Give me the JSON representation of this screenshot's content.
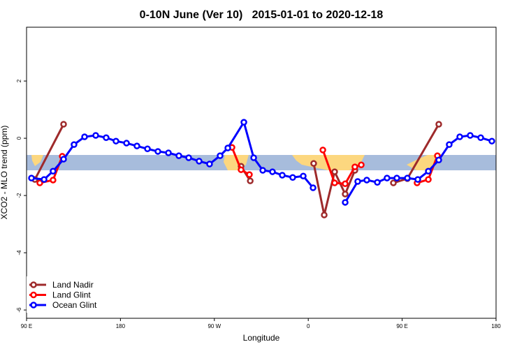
{
  "chart_data": {
    "type": "line",
    "title": "0-10N June (Ver 10)   2015-01-01 to 2020-12-18",
    "x_label": "Longitude",
    "y_label": "XCO2 - MLO trend (ppm)",
    "xlim": [
      90,
      540
    ],
    "ylim": [
      -6.29,
      3.88
    ],
    "xticks": [
      {
        "value": 90,
        "label": "90 E"
      },
      {
        "value": 180,
        "label": "180"
      },
      {
        "value": 270,
        "label": "90 W"
      },
      {
        "value": 360,
        "label": "0"
      },
      {
        "value": 450,
        "label": "90 E"
      },
      {
        "value": 540,
        "label": "180"
      }
    ],
    "yticks": [
      -6,
      -4,
      -2,
      0,
      2
    ],
    "legend": "bottom-left",
    "series": [
      {
        "name": "Land Nadir",
        "color": "#9e2a2b",
        "x": [
          98,
          125.5,
          210,
          295.6,
          304.4,
          335,
          365.2,
          375.3,
          385.3,
          395.4,
          404.7,
          420,
          441.6,
          455,
          485.1
        ],
        "values": [
          -1.44,
          0.49,
          null,
          -0.98,
          -1.49,
          null,
          -0.88,
          -2.68,
          -1.17,
          -1.95,
          -1.12,
          null,
          -1.56,
          -1.41,
          0.49
        ]
      },
      {
        "name": "Land Glint",
        "color": "#ff0000",
        "x": [
          102.7,
          115.4,
          124.2,
          210,
          286.9,
          295.6,
          303.6,
          335,
          374,
          385.3,
          395.4,
          404.7,
          410.8,
          440,
          464.3,
          475.1,
          483.8
        ],
        "values": [
          -1.56,
          -1.46,
          -0.63,
          null,
          -0.32,
          -1.1,
          -1.27,
          null,
          -0.41,
          -1.56,
          -1.59,
          -1.0,
          -0.93,
          null,
          -1.56,
          -1.44,
          -0.61
        ]
      },
      {
        "name": "Ocean Glint",
        "color": "#0000ff",
        "x": [
          94.7,
          106.8,
          115.4,
          125.5,
          135.5,
          145.6,
          156.3,
          166.3,
          175.7,
          185.8,
          195.8,
          205.9,
          215.9,
          226,
          236,
          245.4,
          255.4,
          265.4,
          275.5,
          282.9,
          298.3,
          307.7,
          316.4,
          325.7,
          335.1,
          345.1,
          355.2,
          364.6,
          380,
          395.4,
          407.4,
          416.1,
          426.2,
          435.5,
          444.9,
          455,
          465,
          475.1,
          485.1,
          495.1,
          505.2,
          515.2,
          525.3,
          536
        ],
        "values": [
          -1.39,
          -1.44,
          -1.15,
          -0.73,
          -0.22,
          0.05,
          0.1,
          0.02,
          -0.1,
          -0.17,
          -0.27,
          -0.37,
          -0.46,
          -0.51,
          -0.61,
          -0.68,
          -0.8,
          -0.9,
          -0.61,
          -0.34,
          0.56,
          -0.68,
          -1.12,
          -1.17,
          -1.29,
          -1.37,
          -1.32,
          -1.73,
          null,
          -2.24,
          -1.51,
          -1.46,
          -1.54,
          -1.39,
          -1.39,
          -1.39,
          -1.44,
          -1.15,
          -0.76,
          -0.22,
          0.05,
          0.1,
          0.02,
          -0.1
        ]
      }
    ]
  }
}
